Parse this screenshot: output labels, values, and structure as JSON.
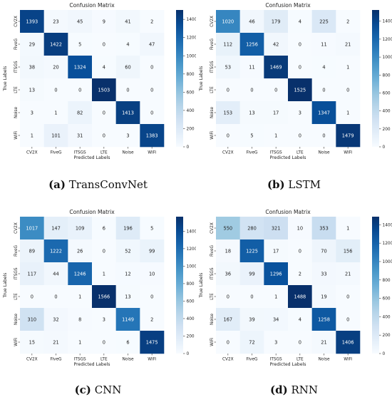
{
  "figure": {
    "captions": [
      {
        "label": "(a)",
        "text": "TransConvNet"
      },
      {
        "label": "(b)",
        "text": "LSTM"
      },
      {
        "label": "(c)",
        "text": "CNN"
      },
      {
        "label": "(d)",
        "text": "RNN"
      }
    ]
  },
  "chart_data": [
    {
      "type": "heatmap",
      "title": "Confusion Matrix",
      "xlabel": "Predicted Labels",
      "ylabel": "True Labels",
      "x_categories": [
        "CV2X",
        "FiveG",
        "ITSGS",
        "LTE",
        "Noise",
        "WiFi"
      ],
      "y_categories": [
        "CV2X",
        "FiveG",
        "ITSGS",
        "LTE",
        "Noise",
        "WiFi"
      ],
      "matrix": [
        [
          1393,
          23,
          45,
          9,
          41,
          2
        ],
        [
          29,
          1422,
          5,
          0,
          4,
          47
        ],
        [
          38,
          20,
          1324,
          4,
          60,
          0
        ],
        [
          13,
          0,
          0,
          1503,
          0,
          0
        ],
        [
          3,
          1,
          82,
          0,
          1413,
          0
        ],
        [
          1,
          101,
          31,
          0,
          3,
          1383
        ]
      ],
      "colorbar_ticks": [
        0,
        200,
        400,
        600,
        800,
        1000,
        1200,
        1400
      ],
      "colorbar_range": [
        0,
        1503
      ]
    },
    {
      "type": "heatmap",
      "title": "Confusion Matrix",
      "xlabel": "Predicted Labels",
      "ylabel": "True Labels",
      "x_categories": [
        "CV2X",
        "FiveG",
        "ITSGS",
        "LTE",
        "Noise",
        "WiFi"
      ],
      "y_categories": [
        "CV2X",
        "FiveG",
        "ITSGS",
        "LTE",
        "Noise",
        "WiFi"
      ],
      "matrix": [
        [
          1020,
          46,
          179,
          4,
          225,
          2
        ],
        [
          112,
          1256,
          42,
          0,
          11,
          21
        ],
        [
          53,
          11,
          1469,
          0,
          4,
          1
        ],
        [
          0,
          0,
          0,
          1525,
          0,
          0
        ],
        [
          153,
          13,
          17,
          3,
          1347,
          1
        ],
        [
          0,
          5,
          1,
          0,
          0,
          1479
        ]
      ],
      "colorbar_ticks": [
        0,
        200,
        400,
        600,
        800,
        1000,
        1200,
        1400
      ],
      "colorbar_range": [
        0,
        1525
      ]
    },
    {
      "type": "heatmap",
      "title": "Confusion Matrix",
      "xlabel": "Predicted Labels",
      "ylabel": "True Labels",
      "x_categories": [
        "CV2X",
        "FiveG",
        "ITSGS",
        "LTE",
        "Noise",
        "WiFi"
      ],
      "y_categories": [
        "CV2X",
        "FiveG",
        "ITSGS",
        "LTE",
        "Noise",
        "WiFi"
      ],
      "matrix": [
        [
          1017,
          147,
          109,
          6,
          196,
          5
        ],
        [
          89,
          1222,
          26,
          0,
          52,
          99
        ],
        [
          117,
          44,
          1246,
          1,
          12,
          10
        ],
        [
          0,
          0,
          1,
          1566,
          13,
          0
        ],
        [
          310,
          32,
          8,
          3,
          1149,
          2
        ],
        [
          15,
          21,
          1,
          0,
          6,
          1475
        ]
      ],
      "colorbar_ticks": [
        0,
        200,
        400,
        600,
        800,
        1000,
        1200,
        1400
      ],
      "colorbar_range": [
        0,
        1566
      ]
    },
    {
      "type": "heatmap",
      "title": "Confusion Matrix",
      "xlabel": "Predicted Labels",
      "ylabel": "True Labels",
      "x_categories": [
        "CV2X",
        "FiveG",
        "ITSGS",
        "LTE",
        "Noise",
        "WiFi"
      ],
      "y_categories": [
        "CV2X",
        "FiveG",
        "ITSGS",
        "LTE",
        "Noise",
        "WiFi"
      ],
      "matrix": [
        [
          550,
          280,
          321,
          10,
          353,
          1
        ],
        [
          18,
          1225,
          17,
          0,
          70,
          156
        ],
        [
          36,
          99,
          1296,
          2,
          33,
          21
        ],
        [
          0,
          0,
          1,
          1488,
          19,
          0
        ],
        [
          167,
          39,
          34,
          4,
          1258,
          0
        ],
        [
          0,
          72,
          3,
          0,
          21,
          1406
        ]
      ],
      "colorbar_ticks": [
        0,
        200,
        400,
        600,
        800,
        1000,
        1200,
        1400
      ],
      "colorbar_range": [
        0,
        1488
      ]
    }
  ]
}
